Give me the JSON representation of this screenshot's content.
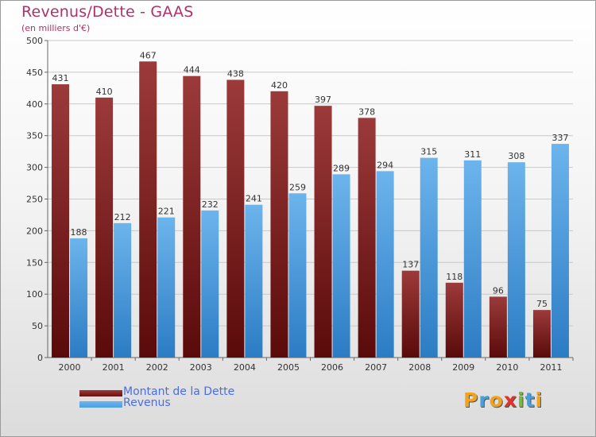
{
  "header": {
    "title": "Revenus/Dette - GAAS",
    "subtitle": "(en milliers d'€)"
  },
  "colors": {
    "dette_top": "#9c3a3a",
    "dette_bottom": "#5a0a0a",
    "revenus_top": "#6cb4ec",
    "revenus_bottom": "#2c7cc4",
    "title": "#b0306a",
    "legend_text": "#4a6ee0"
  },
  "logo": {
    "text": "Proxiti",
    "letters": [
      {
        "ch": "P",
        "color": "#f2a21c"
      },
      {
        "ch": "r",
        "color": "#47a0dc"
      },
      {
        "ch": "o",
        "color": "#f2a21c"
      },
      {
        "ch": "x",
        "color": "#e2332a"
      },
      {
        "ch": "i",
        "color": "#7ab83c"
      },
      {
        "ch": "t",
        "color": "#47a0dc"
      },
      {
        "ch": "i",
        "color": "#f2a21c"
      }
    ]
  },
  "legend": [
    {
      "label": "Montant de la Dette",
      "swatch_color": "#6b0f0f"
    },
    {
      "label": "Revenus",
      "swatch_color": "#4aa0e6"
    }
  ],
  "chart_data": {
    "type": "bar",
    "title": "Revenus/Dette - GAAS",
    "subtitle": "(en milliers d'€)",
    "xlabel": "",
    "ylabel": "",
    "ylim": [
      0,
      500
    ],
    "yticks": [
      0,
      50,
      100,
      150,
      200,
      250,
      300,
      350,
      400,
      450,
      500
    ],
    "grid": true,
    "legend_position": "bottom-left",
    "categories": [
      "2000",
      "2001",
      "2002",
      "2003",
      "2004",
      "2005",
      "2006",
      "2007",
      "2008",
      "2009",
      "2010",
      "2011"
    ],
    "series": [
      {
        "name": "Montant de la Dette",
        "values": [
          431,
          410,
          467,
          444,
          438,
          420,
          397,
          378,
          137,
          118,
          96,
          75
        ]
      },
      {
        "name": "Revenus",
        "values": [
          188,
          212,
          221,
          232,
          241,
          259,
          289,
          294,
          315,
          311,
          308,
          337
        ]
      }
    ]
  }
}
